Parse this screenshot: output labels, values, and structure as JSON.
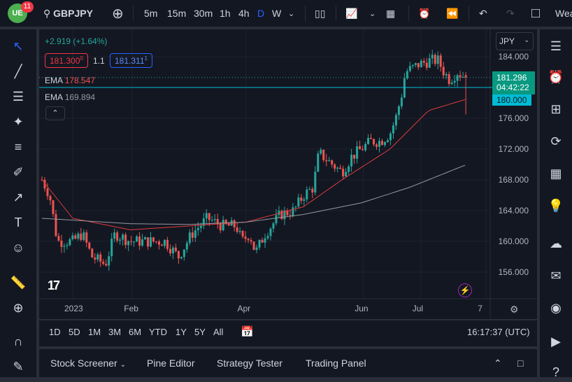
{
  "header": {
    "badge": "11",
    "symbol": "GBPJPY",
    "intervals": [
      "5m",
      "15m",
      "30m",
      "1h",
      "4h",
      "D",
      "W"
    ],
    "active_interval": "D",
    "weather_label": "Wea"
  },
  "legend": {
    "change": "+2.919 (+1.64%)",
    "bid": "181.300",
    "bid_sup": "0",
    "spread": "1.1",
    "ask": "181.311",
    "ask_sup": "1",
    "ema1_label": "EMA",
    "ema1_value": "178.547",
    "ema2_label": "EMA",
    "ema2_value": "169.894"
  },
  "price_axis": {
    "currency": "JPY",
    "ticks": [
      "184.000",
      "176.000",
      "172.000",
      "168.000",
      "164.000",
      "160.000",
      "156.000"
    ],
    "last_price": "181.296",
    "countdown": "04:42:22",
    "line_price": "180.000"
  },
  "time_axis": {
    "labels": [
      {
        "t": "2023",
        "day": 0
      },
      {
        "t": "Feb",
        "day": 31
      },
      {
        "t": "Apr",
        "day": 90
      },
      {
        "t": "Jun",
        "day": 151
      },
      {
        "t": "Jul",
        "day": 181
      },
      {
        "t": "7",
        "day": 215
      }
    ]
  },
  "range_bar": {
    "ranges": [
      "1D",
      "5D",
      "1M",
      "3M",
      "6M",
      "YTD",
      "1Y",
      "5Y",
      "All"
    ],
    "clock": "16:17:37 (UTC)"
  },
  "bottom_panel": {
    "tabs": [
      "Stock Screener",
      "Pine Editor",
      "Strategy Tester",
      "Trading Panel"
    ]
  },
  "colors": {
    "up": "#26a69a",
    "down": "#ef5350",
    "ema1": "#e03b3b",
    "ema2": "#9598a1",
    "accent": "#2962ff",
    "price_line": "#00bcd4"
  },
  "chart_data": {
    "type": "candlestick",
    "ylim": [
      153.5,
      186
    ],
    "close_path": [
      [
        -16,
        168
      ],
      [
        -12,
        166
      ],
      [
        -8,
        160
      ],
      [
        0,
        160
      ],
      [
        5,
        161
      ],
      [
        10,
        158
      ],
      [
        17,
        157
      ],
      [
        22,
        161
      ],
      [
        30,
        160
      ],
      [
        40,
        160
      ],
      [
        48,
        160
      ],
      [
        55,
        158
      ],
      [
        62,
        161
      ],
      [
        70,
        163
      ],
      [
        78,
        162
      ],
      [
        85,
        162
      ],
      [
        88,
        160
      ],
      [
        92,
        161
      ],
      [
        95,
        158.5
      ],
      [
        100,
        161
      ],
      [
        108,
        163.5
      ],
      [
        115,
        164
      ],
      [
        120,
        166
      ],
      [
        125,
        167
      ],
      [
        128,
        171.5
      ],
      [
        135,
        170
      ],
      [
        140,
        169
      ],
      [
        145,
        171
      ],
      [
        150,
        172
      ],
      [
        155,
        173
      ],
      [
        160,
        173
      ],
      [
        165,
        174
      ],
      [
        168,
        176
      ],
      [
        171,
        179
      ],
      [
        173,
        182
      ],
      [
        180,
        183
      ],
      [
        186,
        183.5
      ],
      [
        190,
        183.5
      ],
      [
        193,
        182
      ],
      [
        196,
        181
      ],
      [
        200,
        182
      ],
      [
        203,
        181.5
      ],
      [
        205,
        181.3
      ]
    ],
    "last_candle": {
      "open": 181.6,
      "high": 182,
      "low": 176.5,
      "close": 181.3
    },
    "ema1": [
      [
        -16,
        168
      ],
      [
        0,
        163
      ],
      [
        30,
        161.5
      ],
      [
        60,
        162
      ],
      [
        90,
        162.5
      ],
      [
        120,
        164.5
      ],
      [
        140,
        168
      ],
      [
        165,
        172
      ],
      [
        185,
        177
      ],
      [
        205,
        178.5
      ]
    ],
    "ema2": [
      [
        -16,
        163
      ],
      [
        30,
        162.3
      ],
      [
        60,
        162.2
      ],
      [
        90,
        162.5
      ],
      [
        120,
        163.5
      ],
      [
        150,
        165
      ],
      [
        175,
        167
      ],
      [
        205,
        170
      ]
    ]
  }
}
